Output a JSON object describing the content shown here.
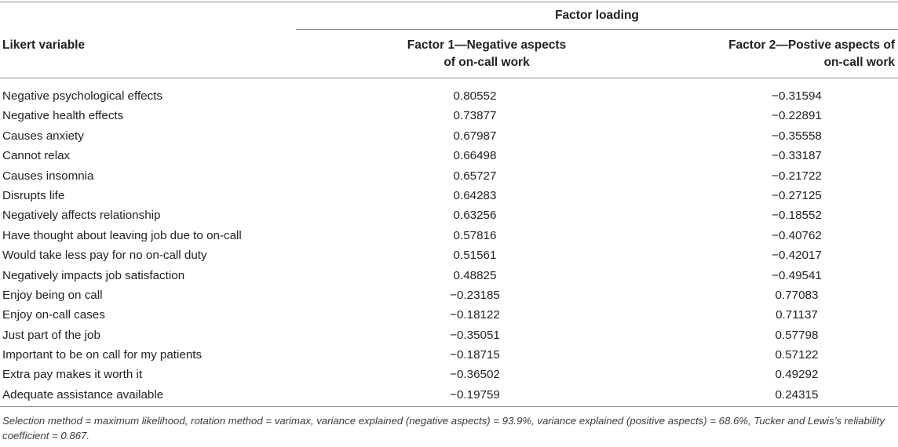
{
  "table": {
    "header": {
      "group": "Factor loading",
      "row_label": "Likert variable",
      "factor1_line1": "Factor 1—Negative aspects",
      "factor1_line2": "of on-call work",
      "factor2_line1": "Factor 2—Postive aspects of",
      "factor2_line2": "on-call work"
    },
    "rows": [
      {
        "label": "Negative psychological effects",
        "f1": "0.80552",
        "f2": "−0.31594"
      },
      {
        "label": "Negative health effects",
        "f1": "0.73877",
        "f2": "−0.22891"
      },
      {
        "label": "Causes anxiety",
        "f1": "0.67987",
        "f2": "−0.35558"
      },
      {
        "label": "Cannot relax",
        "f1": "0.66498",
        "f2": "−0.33187"
      },
      {
        "label": "Causes insomnia",
        "f1": "0.65727",
        "f2": "−0.21722"
      },
      {
        "label": "Disrupts life",
        "f1": "0.64283",
        "f2": "−0.27125"
      },
      {
        "label": "Negatively affects relationship",
        "f1": "0.63256",
        "f2": "−0.18552"
      },
      {
        "label": "Have thought about leaving job due to on-call",
        "f1": "0.57816",
        "f2": "−0.40762"
      },
      {
        "label": "Would take less pay for no on-call duty",
        "f1": "0.51561",
        "f2": "−0.42017"
      },
      {
        "label": "Negatively impacts job satisfaction",
        "f1": "0.48825",
        "f2": "−0.49541"
      },
      {
        "label": "Enjoy being on call",
        "f1": "−0.23185",
        "f2": "0.77083"
      },
      {
        "label": "Enjoy on-call cases",
        "f1": "−0.18122",
        "f2": "0.71137"
      },
      {
        "label": "Just part of the job",
        "f1": "−0.35051",
        "f2": "0.57798"
      },
      {
        "label": "Important to be on call for my patients",
        "f1": "−0.18715",
        "f2": "0.57122"
      },
      {
        "label": "Extra pay makes it worth it",
        "f1": "−0.36502",
        "f2": "0.49292"
      },
      {
        "label": "Adequate assistance available",
        "f1": "−0.19759",
        "f2": "0.24315"
      }
    ],
    "footnote": "Selection method = maximum likelihood, rotation method = varimax, variance explained (negative aspects) = 93.9%, variance explained (positive aspects) = 68.6%, Tucker and Lewis’s reliability coefficient = 0.867."
  }
}
